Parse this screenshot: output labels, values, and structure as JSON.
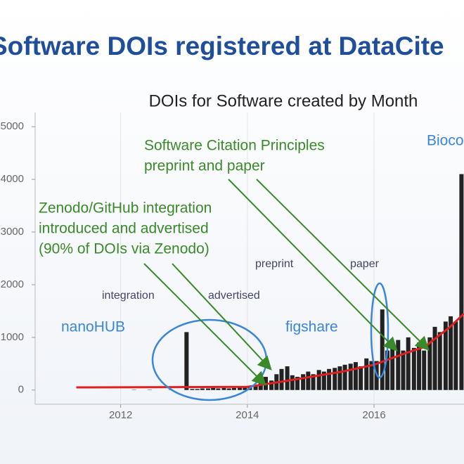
{
  "slide_title": "Software DOIs registered at DataCite",
  "chart_data": {
    "type": "bar",
    "title": "DOIs for Software created by Month",
    "x": [
      2012.04,
      2012.13,
      2012.21,
      2012.29,
      2012.38,
      2012.46,
      2012.54,
      2012.63,
      2012.71,
      2012.79,
      2012.88,
      2012.96,
      2013.04,
      2013.13,
      2013.21,
      2013.29,
      2013.38,
      2013.46,
      2013.54,
      2013.63,
      2013.71,
      2013.79,
      2013.88,
      2013.96,
      2014.04,
      2014.13,
      2014.21,
      2014.29,
      2014.38,
      2014.46,
      2014.54,
      2014.63,
      2014.71,
      2014.79,
      2014.88,
      2014.96,
      2015.04,
      2015.13,
      2015.21,
      2015.29,
      2015.38,
      2015.46,
      2015.54,
      2015.63,
      2015.71,
      2015.79,
      2015.88,
      2015.96,
      2016.04,
      2016.13,
      2016.21,
      2016.29,
      2016.38,
      2016.46,
      2016.54,
      2016.63,
      2016.71,
      2016.79,
      2016.88,
      2016.96,
      2017.04,
      2017.13,
      2017.21,
      2017.29,
      2017.38
    ],
    "series": [
      {
        "color": "#222222",
        "values": [
          0,
          0,
          5,
          0,
          0,
          5,
          0,
          0,
          0,
          5,
          0,
          0,
          1100,
          20,
          20,
          30,
          30,
          40,
          30,
          40,
          30,
          40,
          50,
          60,
          80,
          100,
          150,
          250,
          180,
          300,
          400,
          450,
          280,
          250,
          300,
          350,
          300,
          380,
          350,
          400,
          420,
          450,
          480,
          500,
          530,
          450,
          600,
          550,
          550,
          1530,
          750,
          800,
          950,
          750,
          1000,
          800,
          900,
          750,
          1000,
          1200,
          1100,
          1300,
          1400,
          1300,
          4100
        ]
      }
    ],
    "trend": {
      "color": "#e02020",
      "x": [
        2011.3,
        2014.0,
        2014.5,
        2015.0,
        2015.5,
        2016.0,
        2016.5,
        2016.8,
        2017.2,
        2017.42
      ],
      "values": [
        50,
        60,
        150,
        250,
        350,
        480,
        700,
        820,
        1200,
        1450
      ]
    },
    "xlim": [
      2010.65,
      2017.42
    ],
    "ylim": [
      -270,
      5270
    ],
    "xticks": [
      2012,
      2014,
      2016
    ],
    "yticks": [
      0,
      1000,
      2000,
      3000,
      4000,
      5000
    ],
    "grid": true,
    "annotations": [
      {
        "text": "Software Citation Principles",
        "color": "#3a8a2a"
      },
      {
        "text": "preprint and paper",
        "color": "#3a8a2a"
      },
      {
        "text": "Zenodo/GitHub integration",
        "color": "#3a8a2a"
      },
      {
        "text": "introduced and advertised",
        "color": "#3a8a2a"
      },
      {
        "text": "(90% of DOIs via Zenodo)",
        "color": "#3a8a2a"
      },
      {
        "text": "preprint",
        "color": "#444466"
      },
      {
        "text": "paper",
        "color": "#444466"
      },
      {
        "text": "integration",
        "color": "#444466"
      },
      {
        "text": "advertised",
        "color": "#444466"
      },
      {
        "text": "nanoHUB",
        "color": "#3a86d8"
      },
      {
        "text": "figshare",
        "color": "#3a86d8"
      },
      {
        "text": "Bioconductor",
        "color": "#3a86d8"
      }
    ]
  }
}
